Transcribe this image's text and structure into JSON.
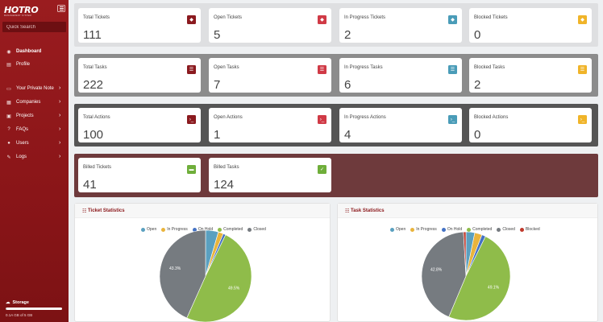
{
  "sidebar": {
    "logo": "HOTRO",
    "logo_sub": "MANAGEMENT SYSTEM",
    "search_placeholder": "Quick Search",
    "items": [
      {
        "label": "Dashboard",
        "icon": "dashboard-icon",
        "glyph": "◉",
        "chevron": false,
        "active": true
      },
      {
        "label": "Profile",
        "icon": "profile-icon",
        "glyph": "▤",
        "chevron": false,
        "active": false
      },
      {
        "label": "Your Private Note",
        "icon": "note-icon",
        "glyph": "▭",
        "chevron": true,
        "active": false
      },
      {
        "label": "Companies",
        "icon": "companies-icon",
        "glyph": "▦",
        "chevron": true,
        "active": false
      },
      {
        "label": "Projects",
        "icon": "projects-icon",
        "glyph": "▣",
        "chevron": true,
        "active": false
      },
      {
        "label": "FAQs",
        "icon": "faq-icon",
        "glyph": "?",
        "chevron": true,
        "active": false
      },
      {
        "label": "Users",
        "icon": "users-icon",
        "glyph": "●",
        "chevron": true,
        "active": false
      },
      {
        "label": "Logs",
        "icon": "logs-icon",
        "glyph": "✎",
        "chevron": true,
        "active": false
      }
    ],
    "chevron_glyph": "›",
    "storage": {
      "label": "Storage",
      "text": "0.1A GB of 5 GB",
      "used_fraction": 0.02
    }
  },
  "colors": {
    "band_tickets": "#dedfe1",
    "band_tasks": "#8c8c8c",
    "band_actions": "#555555",
    "band_billed": "#6e3a3c",
    "accent": "#8a1518"
  },
  "tickets": [
    {
      "label": "Total Tickets",
      "value": "111",
      "icon": "ticket-icon",
      "color": "#8b1a1f",
      "glyph": "◆"
    },
    {
      "label": "Open Tickets",
      "value": "5",
      "icon": "ticket-icon",
      "color": "#d03a46",
      "glyph": "◆"
    },
    {
      "label": "In Progress Tickets",
      "value": "2",
      "icon": "ticket-icon",
      "color": "#4a9cb8",
      "glyph": "◆"
    },
    {
      "label": "Blocked Tickets",
      "value": "0",
      "icon": "ticket-icon",
      "color": "#f0b429",
      "glyph": "◆"
    }
  ],
  "tasks": [
    {
      "label": "Total Tasks",
      "value": "222",
      "icon": "task-list-icon",
      "color": "#8b1a1f",
      "glyph": "☰"
    },
    {
      "label": "Open Tasks",
      "value": "7",
      "icon": "task-list-icon",
      "color": "#d03a46",
      "glyph": "☰"
    },
    {
      "label": "In Progress Tasks",
      "value": "6",
      "icon": "task-list-icon",
      "color": "#4a9cb8",
      "glyph": "☰"
    },
    {
      "label": "Blocked Tasks",
      "value": "2",
      "icon": "task-list-icon",
      "color": "#f0b429",
      "glyph": "☰"
    }
  ],
  "actions": [
    {
      "label": "Total Actions",
      "value": "100",
      "icon": "terminal-icon",
      "color": "#8b1a1f",
      "glyph": "›_"
    },
    {
      "label": "Open Actions",
      "value": "1",
      "icon": "terminal-icon",
      "color": "#d03a46",
      "glyph": "›_"
    },
    {
      "label": "In Progress Actions",
      "value": "4",
      "icon": "terminal-icon",
      "color": "#4a9cb8",
      "glyph": "›_"
    },
    {
      "label": "Blocked Actions",
      "value": "0",
      "icon": "terminal-icon",
      "color": "#f0b429",
      "glyph": "›_"
    }
  ],
  "billed": [
    {
      "label": "Billed Tickets",
      "value": "41",
      "icon": "billed-ticket-icon",
      "color": "#6fae3a",
      "glyph": "▬"
    },
    {
      "label": "Billed Tasks",
      "value": "124",
      "icon": "billed-task-icon",
      "color": "#6fae3a",
      "glyph": "✓"
    }
  ],
  "chart_data": [
    {
      "type": "pie",
      "title": "Ticket Statistics",
      "legend_position": "top",
      "categories": [
        "Open",
        "In Progress",
        "On Hold",
        "Completed",
        "Closed"
      ],
      "colors": [
        "#5aa0c0",
        "#e9b43c",
        "#4472c4",
        "#8fbc4a",
        "#767b80"
      ],
      "values": [
        4.5,
        1.8,
        0.9,
        49.5,
        43.3
      ],
      "data_labels": [
        "",
        "",
        "",
        "49.5%",
        "43.3%"
      ]
    },
    {
      "type": "pie",
      "title": "Task Statistics",
      "legend_position": "top",
      "categories": [
        "Open",
        "In Progress",
        "On Hold",
        "Completed",
        "Closed",
        "Blocked"
      ],
      "colors": [
        "#5aa0c0",
        "#e9b43c",
        "#4472c4",
        "#8fbc4a",
        "#767b80",
        "#c0392b"
      ],
      "values": [
        3.2,
        2.7,
        1.4,
        49.1,
        42.8,
        0.9
      ],
      "data_labels": [
        "",
        "",
        "",
        "49.1%",
        "42.8%",
        ""
      ]
    }
  ]
}
